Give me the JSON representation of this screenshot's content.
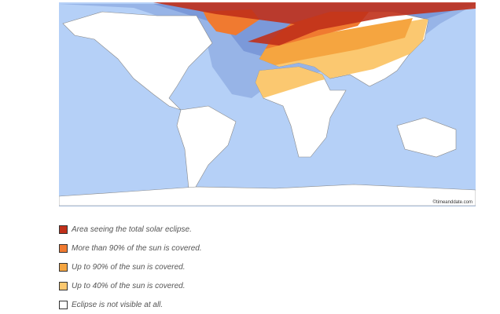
{
  "map": {
    "credit": "©timeanddate.com"
  },
  "legend": [
    {
      "label": "Area seeing the total solar eclipse.",
      "color": "#c0301a"
    },
    {
      "label": "More than 90% of the sun is covered.",
      "color": "#f07a30"
    },
    {
      "label": "Up to 90% of the sun is covered.",
      "color": "#f5a540"
    },
    {
      "label": "Up to 40% of the sun is covered.",
      "color": "#fbc870"
    },
    {
      "label": "Eclipse is not visible at all.",
      "color": "#ffffff"
    }
  ]
}
